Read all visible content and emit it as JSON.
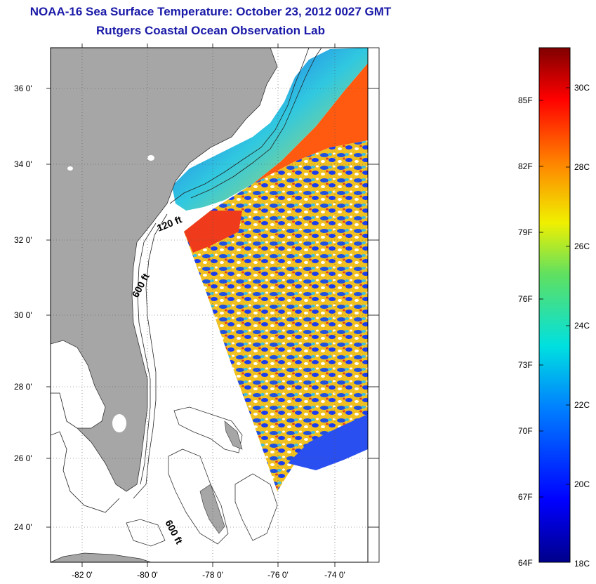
{
  "title": "NOAA-16 Sea Surface Temperature:  October 23, 2012 0027 GMT",
  "subtitle": "Rutgers Coastal Ocean Observation Lab",
  "latitude_labels": [
    "36 0'",
    "34 0'",
    "32 0'",
    "30 0'",
    "28 0'",
    "26 0'",
    "24 0'"
  ],
  "longitude_labels": [
    "-82 0'",
    "-80 0'",
    "-78 0'",
    "-76 0'",
    "-74 0'"
  ],
  "bathymetry_labels": [
    "120 ft",
    "600 ft",
    "600 ft"
  ],
  "colorbar": {
    "fahrenheit_labels": [
      "85F",
      "82F",
      "79F",
      "76F",
      "73F",
      "70F",
      "67F",
      "64F"
    ],
    "celsius_labels": [
      "30C",
      "28C",
      "26C",
      "24C",
      "22C",
      "20C",
      "18C"
    ],
    "range_c": [
      18,
      31
    ]
  },
  "colors": {
    "title": "#1a1aa8",
    "land": "#a6a6a6",
    "warm": "#e8361a",
    "cool": "#1a3cf0"
  }
}
